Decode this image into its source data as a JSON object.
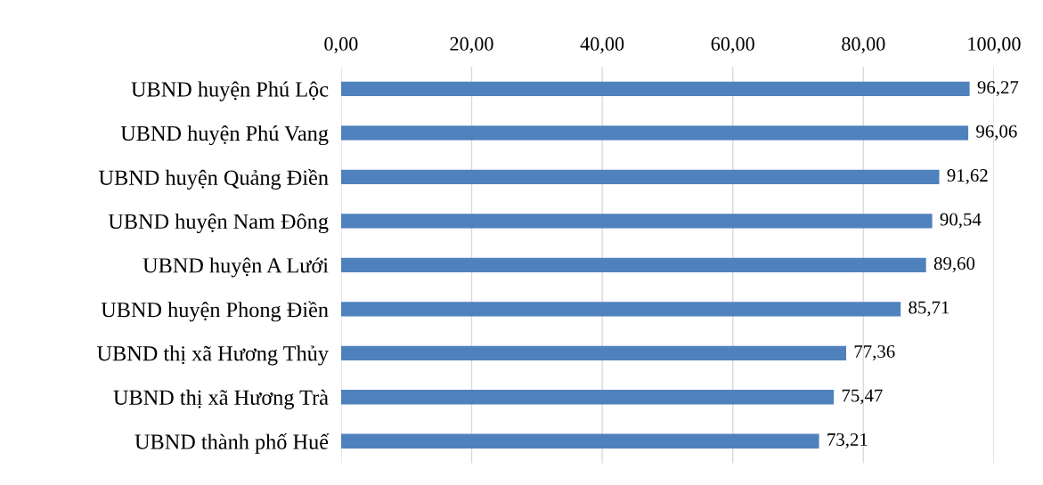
{
  "chart_data": {
    "type": "bar",
    "orientation": "horizontal",
    "categories": [
      "UBND huyện Phú Lộc",
      "UBND huyện Phú Vang",
      "UBND huyện Quảng Điền",
      "UBND huyện Nam Đông",
      "UBND huyện A Lưới",
      "UBND huyện Phong Điền",
      "UBND thị xã Hương Thủy",
      "UBND thị xã Hương Trà",
      "UBND thành phố Huế"
    ],
    "values": [
      96.27,
      96.06,
      91.62,
      90.54,
      89.6,
      85.71,
      77.36,
      75.47,
      73.21
    ],
    "value_labels": [
      "96,27",
      "96,06",
      "91,62",
      "90,54",
      "89,60",
      "85,71",
      "77,36",
      "75,47",
      "73,21"
    ],
    "color": "#4f81bd",
    "xlim": [
      0,
      100
    ],
    "xticks": [
      {
        "value": 0,
        "label": "0,00"
      },
      {
        "value": 20,
        "label": "20,00"
      },
      {
        "value": 40,
        "label": "40,00"
      },
      {
        "value": 60,
        "label": "60,00"
      },
      {
        "value": 80,
        "label": "80,00"
      },
      {
        "value": 100,
        "label": "100,00"
      }
    ],
    "grid": "x"
  }
}
